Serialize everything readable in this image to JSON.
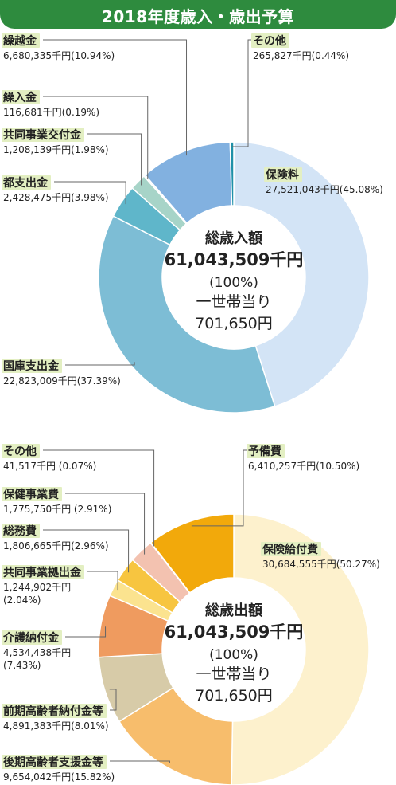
{
  "page_title": "2018年度歳入・歳出予算",
  "chart_data": [
    {
      "type": "pie",
      "center_title": "総歳入額",
      "center_total": "61,043,509千円",
      "center_percent": "(100%)",
      "center_per_label": "一世帯当り",
      "center_per_value": "701,650円",
      "colors": [
        "#d3e4f6",
        "#7dbdd5",
        "#5fb6ca",
        "#a7d4c8",
        "#f3f8f6",
        "#82b1e0",
        "#1e90a8"
      ],
      "slices": [
        {
          "label": "保険料",
          "value_text": "27,521,043千円(45.08%)",
          "value": 27521043,
          "percent": 45.08
        },
        {
          "label": "国庫支出金",
          "value_text": "22,823,009千円(37.39%)",
          "value": 22823009,
          "percent": 37.39
        },
        {
          "label": "都支出金",
          "value_text": "2,428,475千円(3.98%)",
          "value": 2428475,
          "percent": 3.98
        },
        {
          "label": "共同事業交付金",
          "value_text": "1,208,139千円(1.98%)",
          "value": 1208139,
          "percent": 1.98
        },
        {
          "label": "繰入金",
          "value_text": "116,681千円(0.19%)",
          "value": 116681,
          "percent": 0.19
        },
        {
          "label": "繰越金",
          "value_text": "6,680,335千円(10.94%)",
          "value": 6680335,
          "percent": 10.94
        },
        {
          "label": "その他",
          "value_text": "265,827千円(0.44%)",
          "value": 265827,
          "percent": 0.44
        }
      ]
    },
    {
      "type": "pie",
      "center_title": "総歳出額",
      "center_total": "61,043,509千円",
      "center_percent": "(100%)",
      "center_per_label": "一世帯当り",
      "center_per_value": "701,650円",
      "colors": [
        "#fdf1cd",
        "#f7bd6c",
        "#d7cba8",
        "#ef9b5f",
        "#fbe38f",
        "#f7c540",
        "#f3c2b0",
        "#e8e8e8",
        "#f2a90b"
      ],
      "slices": [
        {
          "label": "保険給付費",
          "value_text": "30,684,555千円(50.27%)",
          "value": 30684555,
          "percent": 50.27
        },
        {
          "label": "後期高齢者支援金等",
          "value_text": "9,654,042千円(15.82%)",
          "value": 9654042,
          "percent": 15.82
        },
        {
          "label": "前期高齢者納付金等",
          "value_text": "4,891,383千円(8.01%)",
          "value": 4891383,
          "percent": 8.01
        },
        {
          "label": "介護納付金",
          "value_text": "4,534,438千円",
          "value_text2": "(7.43%)",
          "value": 4534438,
          "percent": 7.43
        },
        {
          "label": "共同事業拠出金",
          "value_text": "1,244,902千円",
          "value_text2": "(2.04%)",
          "value": 1244902,
          "percent": 2.04
        },
        {
          "label": "総務費",
          "value_text": "1,806,665千円(2.96%)",
          "value": 1806665,
          "percent": 2.96
        },
        {
          "label": "保健事業費",
          "value_text": "1,775,750千円 (2.91%)",
          "value": 1775750,
          "percent": 2.91
        },
        {
          "label": "その他",
          "value_text": "41,517千円 (0.07%)",
          "value": 41517,
          "percent": 0.07
        },
        {
          "label": "予備費",
          "value_text": "6,410,257千円(10.50%)",
          "value": 6410257,
          "percent": 10.5
        }
      ]
    }
  ]
}
